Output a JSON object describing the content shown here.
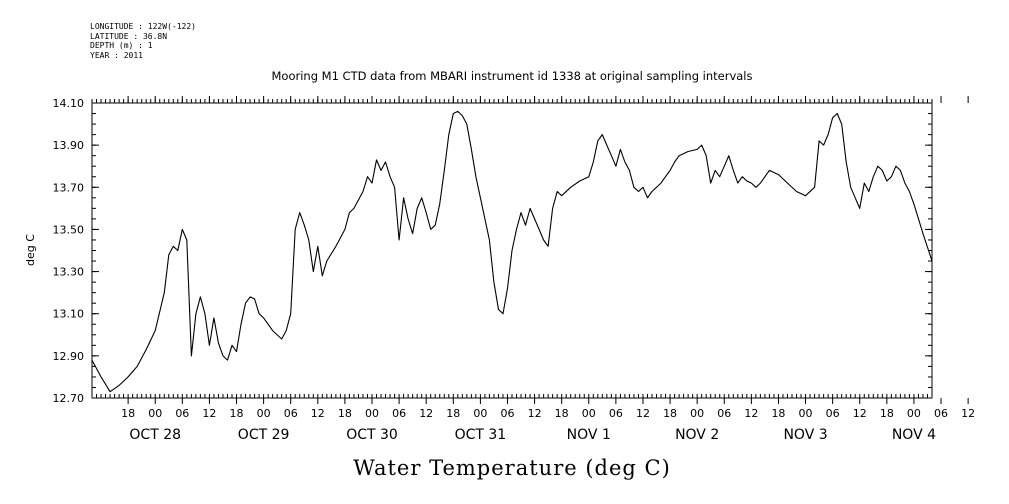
{
  "header_meta": {
    "longitude": "LONGITUDE : 122W(-122)",
    "latitude": "LATITUDE : 36.8N",
    "depth": "DEPTH (m) : 1",
    "year": "YEAR : 2011"
  },
  "chart_data": {
    "type": "line",
    "title": "Mooring M1 CTD data from MBARI instrument id 1338 at original sampling intervals",
    "xlabel": "Water Temperature (deg C)",
    "ylabel": "deg C",
    "xlim": [
      -8,
      178
    ],
    "ylim": [
      12.7,
      14.1
    ],
    "yticks": [
      "12.70",
      "12.90",
      "13.10",
      "13.30",
      "13.50",
      "13.70",
      "13.90",
      "14.10"
    ],
    "xtick_hours": [
      "18",
      "00",
      "06",
      "12",
      "18",
      "00",
      "06",
      "12",
      "18",
      "00",
      "06",
      "12",
      "18",
      "00",
      "06",
      "12",
      "18",
      "00",
      "06",
      "12",
      "18",
      "00",
      "06",
      "12",
      "18",
      "00",
      "06",
      "12",
      "18",
      "00",
      "06",
      "12"
    ],
    "date_labels": [
      "OCT 28",
      "OCT 29",
      "OCT 30",
      "OCT 31",
      "NOV  1",
      "NOV  2",
      "NOV  3",
      "NOV  4"
    ],
    "grid": false,
    "series": [
      {
        "points": [
          [
            -8,
            12.88
          ],
          [
            -6,
            12.8
          ],
          [
            -4,
            12.73
          ],
          [
            -2,
            12.76
          ],
          [
            0,
            12.8
          ],
          [
            2,
            12.85
          ],
          [
            4,
            12.93
          ],
          [
            6,
            13.02
          ],
          [
            8,
            13.2
          ],
          [
            9,
            13.38
          ],
          [
            10,
            13.42
          ],
          [
            11,
            13.4
          ],
          [
            12,
            13.5
          ],
          [
            13,
            13.45
          ],
          [
            14,
            12.9
          ],
          [
            15,
            13.1
          ],
          [
            16,
            13.18
          ],
          [
            17,
            13.1
          ],
          [
            18,
            12.95
          ],
          [
            19,
            13.08
          ],
          [
            20,
            12.96
          ],
          [
            21,
            12.9
          ],
          [
            22,
            12.88
          ],
          [
            23,
            12.95
          ],
          [
            24,
            12.92
          ],
          [
            25,
            13.05
          ],
          [
            26,
            13.15
          ],
          [
            27,
            13.18
          ],
          [
            28,
            13.17
          ],
          [
            29,
            13.1
          ],
          [
            30,
            13.08
          ],
          [
            32,
            13.02
          ],
          [
            34,
            12.98
          ],
          [
            35,
            13.02
          ],
          [
            36,
            13.1
          ],
          [
            37,
            13.5
          ],
          [
            38,
            13.58
          ],
          [
            39,
            13.52
          ],
          [
            40,
            13.45
          ],
          [
            41,
            13.3
          ],
          [
            42,
            13.42
          ],
          [
            43,
            13.28
          ],
          [
            44,
            13.35
          ],
          [
            46,
            13.42
          ],
          [
            48,
            13.5
          ],
          [
            49,
            13.58
          ],
          [
            50,
            13.6
          ],
          [
            52,
            13.68
          ],
          [
            53,
            13.75
          ],
          [
            54,
            13.72
          ],
          [
            55,
            13.83
          ],
          [
            56,
            13.78
          ],
          [
            57,
            13.82
          ],
          [
            58,
            13.75
          ],
          [
            59,
            13.7
          ],
          [
            60,
            13.45
          ],
          [
            61,
            13.65
          ],
          [
            62,
            13.55
          ],
          [
            63,
            13.48
          ],
          [
            64,
            13.6
          ],
          [
            65,
            13.65
          ],
          [
            66,
            13.58
          ],
          [
            67,
            13.5
          ],
          [
            68,
            13.52
          ],
          [
            69,
            13.62
          ],
          [
            70,
            13.78
          ],
          [
            71,
            13.95
          ],
          [
            72,
            14.05
          ],
          [
            73,
            14.06
          ],
          [
            74,
            14.04
          ],
          [
            75,
            14.0
          ],
          [
            76,
            13.88
          ],
          [
            77,
            13.75
          ],
          [
            78,
            13.65
          ],
          [
            79,
            13.55
          ],
          [
            80,
            13.45
          ],
          [
            81,
            13.25
          ],
          [
            82,
            13.12
          ],
          [
            83,
            13.1
          ],
          [
            84,
            13.22
          ],
          [
            85,
            13.4
          ],
          [
            86,
            13.5
          ],
          [
            87,
            13.58
          ],
          [
            88,
            13.52
          ],
          [
            89,
            13.6
          ],
          [
            90,
            13.55
          ],
          [
            91,
            13.5
          ],
          [
            92,
            13.45
          ],
          [
            93,
            13.42
          ],
          [
            94,
            13.6
          ],
          [
            95,
            13.68
          ],
          [
            96,
            13.66
          ],
          [
            98,
            13.7
          ],
          [
            100,
            13.73
          ],
          [
            102,
            13.75
          ],
          [
            103,
            13.82
          ],
          [
            104,
            13.92
          ],
          [
            105,
            13.95
          ],
          [
            106,
            13.9
          ],
          [
            107,
            13.85
          ],
          [
            108,
            13.8
          ],
          [
            109,
            13.88
          ],
          [
            110,
            13.82
          ],
          [
            111,
            13.78
          ],
          [
            112,
            13.7
          ],
          [
            113,
            13.68
          ],
          [
            114,
            13.7
          ],
          [
            115,
            13.65
          ],
          [
            116,
            13.68
          ],
          [
            118,
            13.72
          ],
          [
            119,
            13.75
          ],
          [
            120,
            13.78
          ],
          [
            121,
            13.82
          ],
          [
            122,
            13.85
          ],
          [
            124,
            13.87
          ],
          [
            126,
            13.88
          ],
          [
            127,
            13.9
          ],
          [
            128,
            13.85
          ],
          [
            129,
            13.72
          ],
          [
            130,
            13.78
          ],
          [
            131,
            13.75
          ],
          [
            132,
            13.8
          ],
          [
            133,
            13.85
          ],
          [
            134,
            13.78
          ],
          [
            135,
            13.72
          ],
          [
            136,
            13.75
          ],
          [
            137,
            13.73
          ],
          [
            138,
            13.72
          ],
          [
            139,
            13.7
          ],
          [
            140,
            13.72
          ],
          [
            141,
            13.75
          ],
          [
            142,
            13.78
          ],
          [
            143,
            13.77
          ],
          [
            144,
            13.76
          ],
          [
            146,
            13.72
          ],
          [
            148,
            13.68
          ],
          [
            150,
            13.66
          ],
          [
            152,
            13.7
          ],
          [
            153,
            13.92
          ],
          [
            154,
            13.9
          ],
          [
            155,
            13.95
          ],
          [
            156,
            14.03
          ],
          [
            157,
            14.05
          ],
          [
            158,
            14.0
          ],
          [
            159,
            13.82
          ],
          [
            160,
            13.7
          ],
          [
            161,
            13.65
          ],
          [
            162,
            13.6
          ],
          [
            163,
            13.72
          ],
          [
            164,
            13.68
          ],
          [
            165,
            13.75
          ],
          [
            166,
            13.8
          ],
          [
            167,
            13.78
          ],
          [
            168,
            13.73
          ],
          [
            169,
            13.75
          ],
          [
            170,
            13.8
          ],
          [
            171,
            13.78
          ],
          [
            172,
            13.72
          ],
          [
            173,
            13.68
          ],
          [
            174,
            13.62
          ],
          [
            175,
            13.55
          ],
          [
            176,
            13.48
          ],
          [
            178,
            13.35
          ]
        ]
      }
    ]
  }
}
